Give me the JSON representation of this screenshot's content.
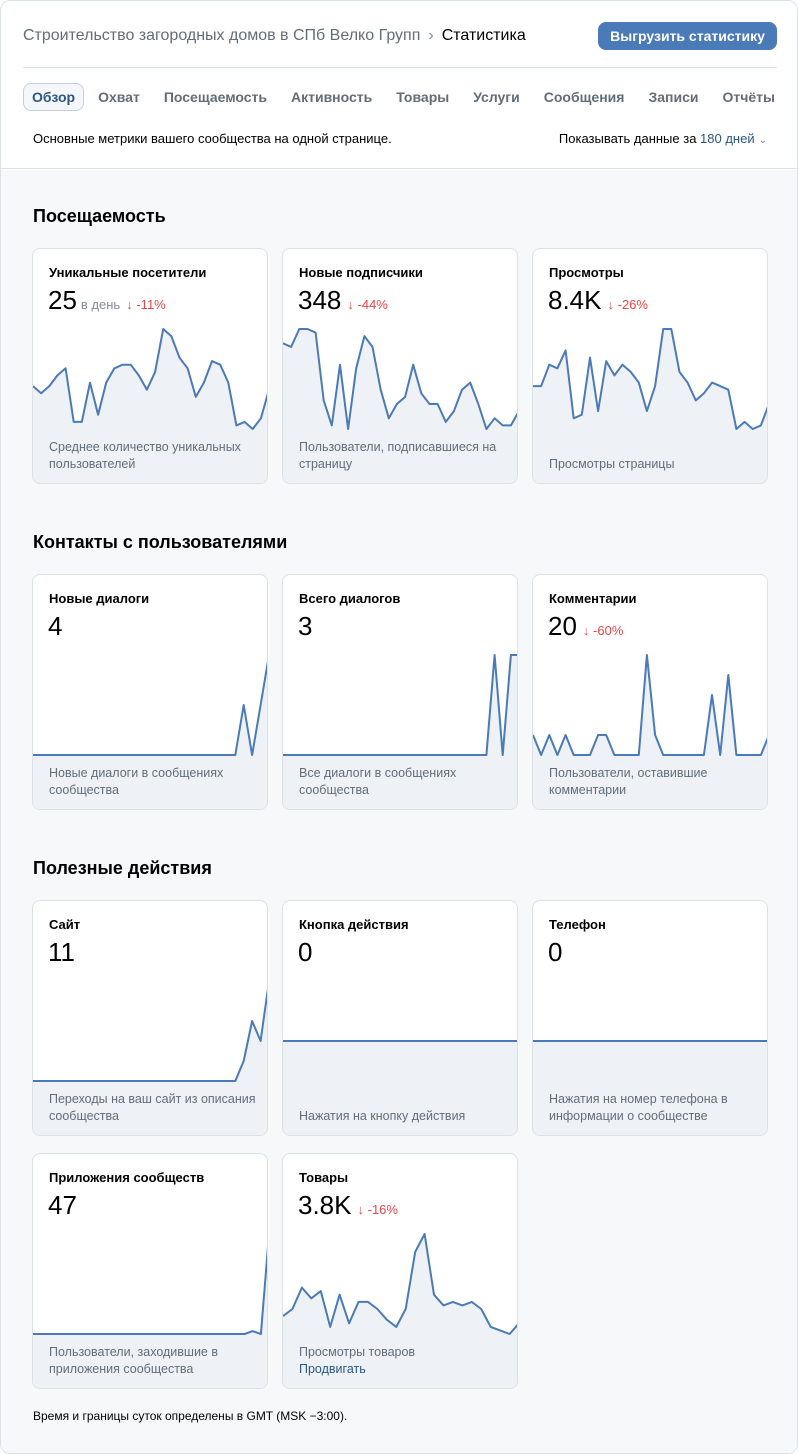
{
  "header": {
    "breadcrumb_group": "Строительство загородных домов в СПб Велко Групп",
    "breadcrumb_separator": "›",
    "breadcrumb_current": "Статистика",
    "export_button": "Выгрузить статистику",
    "tabs": [
      "Обзор",
      "Охват",
      "Посещаемость",
      "Активность",
      "Товары",
      "Услуги",
      "Сообщения",
      "Записи",
      "Отчёты"
    ],
    "active_tab": "Обзор",
    "subtitle": "Основные метрики вашего сообщества на одной странице.",
    "period_prefix": "Показывать данные за ",
    "period_value": "180 дней"
  },
  "sections": [
    {
      "title": "Посещаемость",
      "cards": [
        {
          "title": "Уникальные посетители",
          "value": "25",
          "sub": "в день",
          "delta": "-11%",
          "desc": "Среднее количество уникальных пользователей",
          "series": [
            16,
            14,
            16,
            19,
            21,
            6,
            6,
            17,
            8,
            17,
            21,
            22,
            22,
            19,
            15,
            20,
            32,
            30,
            24,
            21,
            13,
            17,
            23,
            22,
            17,
            5,
            6,
            4,
            7,
            15
          ]
        },
        {
          "title": "Новые подписчики",
          "value": "348",
          "sub": "",
          "delta": "-44%",
          "desc": "Пользователи, подписавшиеся на страницу",
          "series": [
            27,
            26,
            31,
            31,
            30,
            11,
            4,
            21,
            3,
            20,
            29,
            26,
            14,
            6,
            10,
            12,
            21,
            13,
            10,
            10,
            5,
            8,
            14,
            16,
            10,
            3,
            6,
            4,
            4,
            8
          ]
        },
        {
          "title": "Просмотры",
          "value": "8.4K",
          "sub": "",
          "delta": "-26%",
          "desc": "Просмотры страницы",
          "series": [
            16,
            16,
            22,
            21,
            26,
            7,
            8,
            24,
            9,
            23,
            19,
            22,
            20,
            17,
            9,
            16,
            32,
            32,
            20,
            17,
            12,
            14,
            17,
            16,
            15,
            4,
            6,
            4,
            5,
            11
          ]
        }
      ]
    },
    {
      "title": "Контакты с пользователями",
      "cards": [
        {
          "title": "Новые диалоги",
          "value": "4",
          "sub": "",
          "delta": "",
          "desc": "Новые диалоги в сообщениях сообщества",
          "series": [
            0,
            0,
            0,
            0,
            0,
            0,
            0,
            0,
            0,
            0,
            0,
            0,
            0,
            0,
            0,
            0,
            0,
            0,
            0,
            0,
            0,
            0,
            0,
            0,
            0,
            1,
            0,
            1,
            2
          ]
        },
        {
          "title": "Всего диалогов",
          "value": "3",
          "sub": "",
          "delta": "",
          "desc": "Все диалоги в сообщениях сообщества",
          "series": [
            0,
            0,
            0,
            0,
            0,
            0,
            0,
            0,
            0,
            0,
            0,
            0,
            0,
            0,
            0,
            0,
            0,
            0,
            0,
            0,
            0,
            0,
            0,
            0,
            0,
            0,
            1,
            0,
            1,
            1
          ]
        },
        {
          "title": "Комментарии",
          "value": "20",
          "sub": "",
          "delta": "-60%",
          "desc": "Пользователи, оставившие комментарии",
          "series": [
            1,
            0,
            1,
            0,
            1,
            0,
            0,
            0,
            1,
            1,
            0,
            0,
            0,
            0,
            5,
            1,
            0,
            0,
            0,
            0,
            0,
            0,
            3,
            0,
            4,
            0,
            0,
            0,
            0,
            1
          ]
        }
      ]
    },
    {
      "title": "Полезные действия",
      "cards": [
        {
          "title": "Сайт",
          "value": "11",
          "sub": "",
          "delta": "",
          "desc": "Переходы на ваш сайт из описания сообщества",
          "series": [
            0,
            0,
            0,
            0,
            0,
            0,
            0,
            0,
            0,
            0,
            0,
            0,
            0,
            0,
            0,
            0,
            0,
            0,
            0,
            0,
            0,
            0,
            0,
            0,
            0,
            1,
            3,
            2,
            5
          ]
        },
        {
          "title": "Кнопка действия",
          "value": "0",
          "sub": "",
          "delta": "",
          "desc": "Нажатия на кнопку действия",
          "series": [
            0,
            0,
            0,
            0,
            0,
            0,
            0,
            0,
            0,
            0
          ]
        },
        {
          "title": "Телефон",
          "value": "0",
          "sub": "",
          "delta": "",
          "desc": "Нажатия на номер телефона в информации о сообществе",
          "series": [
            0,
            0,
            0,
            0,
            0,
            0,
            0,
            0,
            0,
            0
          ]
        },
        {
          "title": "Приложения сообществ",
          "value": "47",
          "sub": "",
          "delta": "",
          "desc": "Пользователи, заходившие в приложения сообщества",
          "series": [
            0,
            0,
            0,
            0,
            0,
            0,
            0,
            0,
            0,
            0,
            0,
            0,
            0,
            0,
            0,
            0,
            0,
            0,
            0,
            0,
            0,
            0,
            0,
            0,
            0,
            0,
            0,
            1,
            0,
            35
          ]
        },
        {
          "title": "Товары",
          "value": "3.8K",
          "sub": "",
          "delta": "-16%",
          "desc": "Просмотры товаров",
          "link": "Продвигать",
          "series": [
            12,
            14,
            20,
            17,
            19,
            9,
            18,
            10,
            16,
            16,
            14,
            11,
            9,
            14,
            30,
            35,
            18,
            15,
            16,
            15,
            16,
            14,
            9,
            8,
            7,
            10
          ]
        }
      ]
    }
  ],
  "footnote": "Время и границы суток определены в GMT (MSK −3:00).",
  "colors": {
    "accent": "#4a7ab8",
    "line": "#4a7ab8",
    "delta_down": "#e64646",
    "link": "#2a5885"
  }
}
